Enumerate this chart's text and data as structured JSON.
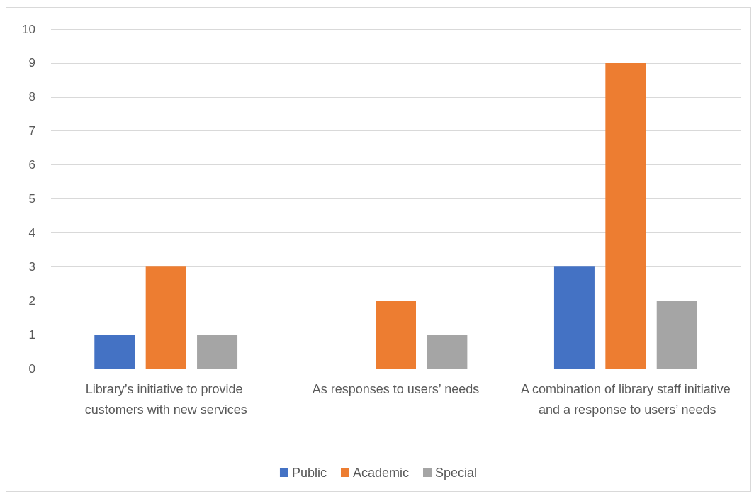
{
  "chart_data": {
    "type": "bar",
    "categories": [
      "Library’s initiative to provide customers with new services",
      "As responses to users’ needs",
      "A combination of library staff initiative and a response to users’ needs"
    ],
    "series": [
      {
        "name": "Public",
        "color": "#4472c4",
        "values": [
          1,
          0,
          3
        ]
      },
      {
        "name": "Academic",
        "color": "#ed7d31",
        "values": [
          3,
          2,
          9
        ]
      },
      {
        "name": "Special",
        "color": "#a5a5a5",
        "values": [
          1,
          1,
          2
        ]
      }
    ],
    "ylim": [
      0,
      10
    ],
    "yticks": [
      0,
      1,
      2,
      3,
      4,
      5,
      6,
      7,
      8,
      9,
      10
    ],
    "grid": "y",
    "legend": "bottom"
  }
}
